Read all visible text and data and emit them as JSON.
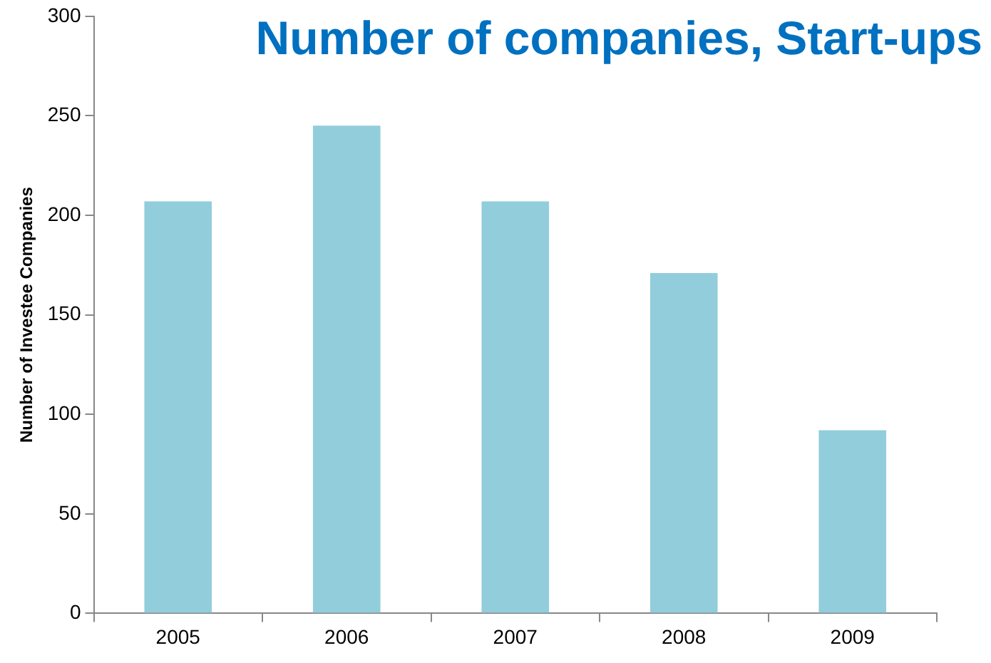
{
  "chart_data": {
    "type": "bar",
    "title": "Number of companies, Start-ups",
    "ylabel": "Number of Investee Companies",
    "categories": [
      "2005",
      "2006",
      "2007",
      "2008",
      "2009"
    ],
    "values": [
      207,
      245,
      207,
      171,
      92
    ],
    "color": "#92cddc",
    "ylim": [
      0,
      300
    ],
    "yticks": [
      0,
      50,
      100,
      150,
      200,
      250,
      300
    ],
    "grid": false,
    "legend": false
  }
}
